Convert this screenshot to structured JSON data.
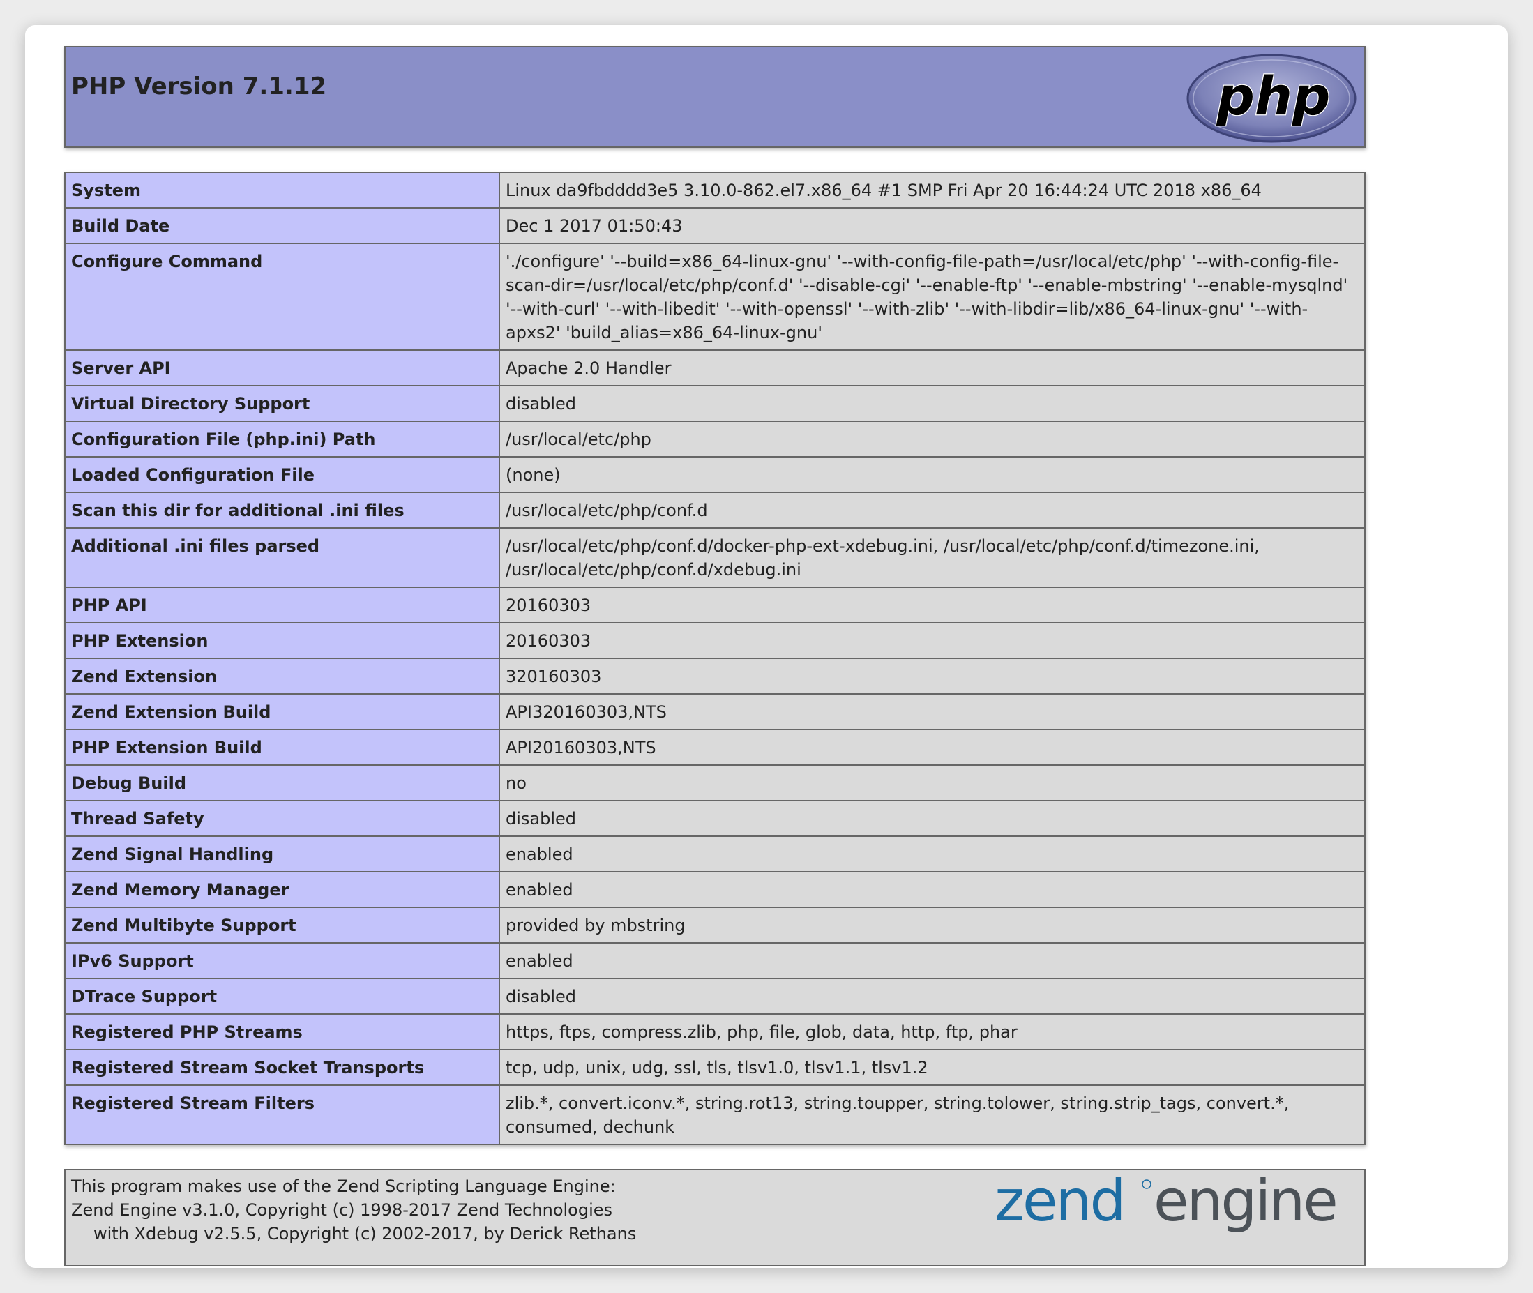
{
  "header": {
    "title": "PHP Version 7.1.12",
    "logo_text": "php"
  },
  "rows": [
    {
      "key": "System",
      "value": "Linux da9fbdddd3e5 3.10.0-862.el7.x86_64 #1 SMP Fri Apr 20 16:44:24 UTC 2018 x86_64"
    },
    {
      "key": "Build Date",
      "value": "Dec 1 2017 01:50:43"
    },
    {
      "key": "Configure Command",
      "value": "'./configure' '--build=x86_64-linux-gnu' '--with-config-file-path=/usr/local/etc/php' '--with-config-file-scan-dir=/usr/local/etc/php/conf.d' '--disable-cgi' '--enable-ftp' '--enable-mbstring' '--enable-mysqlnd' '--with-curl' '--with-libedit' '--with-openssl' '--with-zlib' '--with-libdir=lib/x86_64-linux-gnu' '--with-apxs2' 'build_alias=x86_64-linux-gnu'"
    },
    {
      "key": "Server API",
      "value": "Apache 2.0 Handler"
    },
    {
      "key": "Virtual Directory Support",
      "value": "disabled"
    },
    {
      "key": "Configuration File (php.ini) Path",
      "value": "/usr/local/etc/php"
    },
    {
      "key": "Loaded Configuration File",
      "value": "(none)"
    },
    {
      "key": "Scan this dir for additional .ini files",
      "value": "/usr/local/etc/php/conf.d"
    },
    {
      "key": "Additional .ini files parsed",
      "value": "/usr/local/etc/php/conf.d/docker-php-ext-xdebug.ini, /usr/local/etc/php/conf.d/timezone.ini, /usr/local/etc/php/conf.d/xdebug.ini"
    },
    {
      "key": "PHP API",
      "value": "20160303"
    },
    {
      "key": "PHP Extension",
      "value": "20160303"
    },
    {
      "key": "Zend Extension",
      "value": "320160303"
    },
    {
      "key": "Zend Extension Build",
      "value": "API320160303,NTS"
    },
    {
      "key": "PHP Extension Build",
      "value": "API20160303,NTS"
    },
    {
      "key": "Debug Build",
      "value": "no"
    },
    {
      "key": "Thread Safety",
      "value": "disabled"
    },
    {
      "key": "Zend Signal Handling",
      "value": "enabled"
    },
    {
      "key": "Zend Memory Manager",
      "value": "enabled"
    },
    {
      "key": "Zend Multibyte Support",
      "value": "provided by mbstring"
    },
    {
      "key": "IPv6 Support",
      "value": "enabled"
    },
    {
      "key": "DTrace Support",
      "value": "disabled"
    },
    {
      "key": "Registered PHP Streams",
      "value": "https, ftps, compress.zlib, php, file, glob, data, http, ftp, phar"
    },
    {
      "key": "Registered Stream Socket Transports",
      "value": "tcp, udp, unix, udg, ssl, tls, tlsv1.0, tlsv1.1, tlsv1.2"
    },
    {
      "key": "Registered Stream Filters",
      "value": "zlib.*, convert.iconv.*, string.rot13, string.toupper, string.tolower, string.strip_tags, convert.*, consumed, dechunk"
    }
  ],
  "footer": {
    "line1": "This program makes use of the Zend Scripting Language Engine:",
    "line2": "Zend Engine v3.1.0, Copyright (c) 1998-2017 Zend Technologies",
    "line3": "with Xdebug v2.5.5, Copyright (c) 2002-2017, by Derick Rethans",
    "logo_word1": "zend",
    "logo_word2": "engine"
  },
  "colors": {
    "header_bg": "#8a8fc8",
    "key_bg": "#c3c3fb",
    "value_bg": "#dadada",
    "zend_blue": "#1d6da3",
    "engine_gray": "#4c5258"
  }
}
